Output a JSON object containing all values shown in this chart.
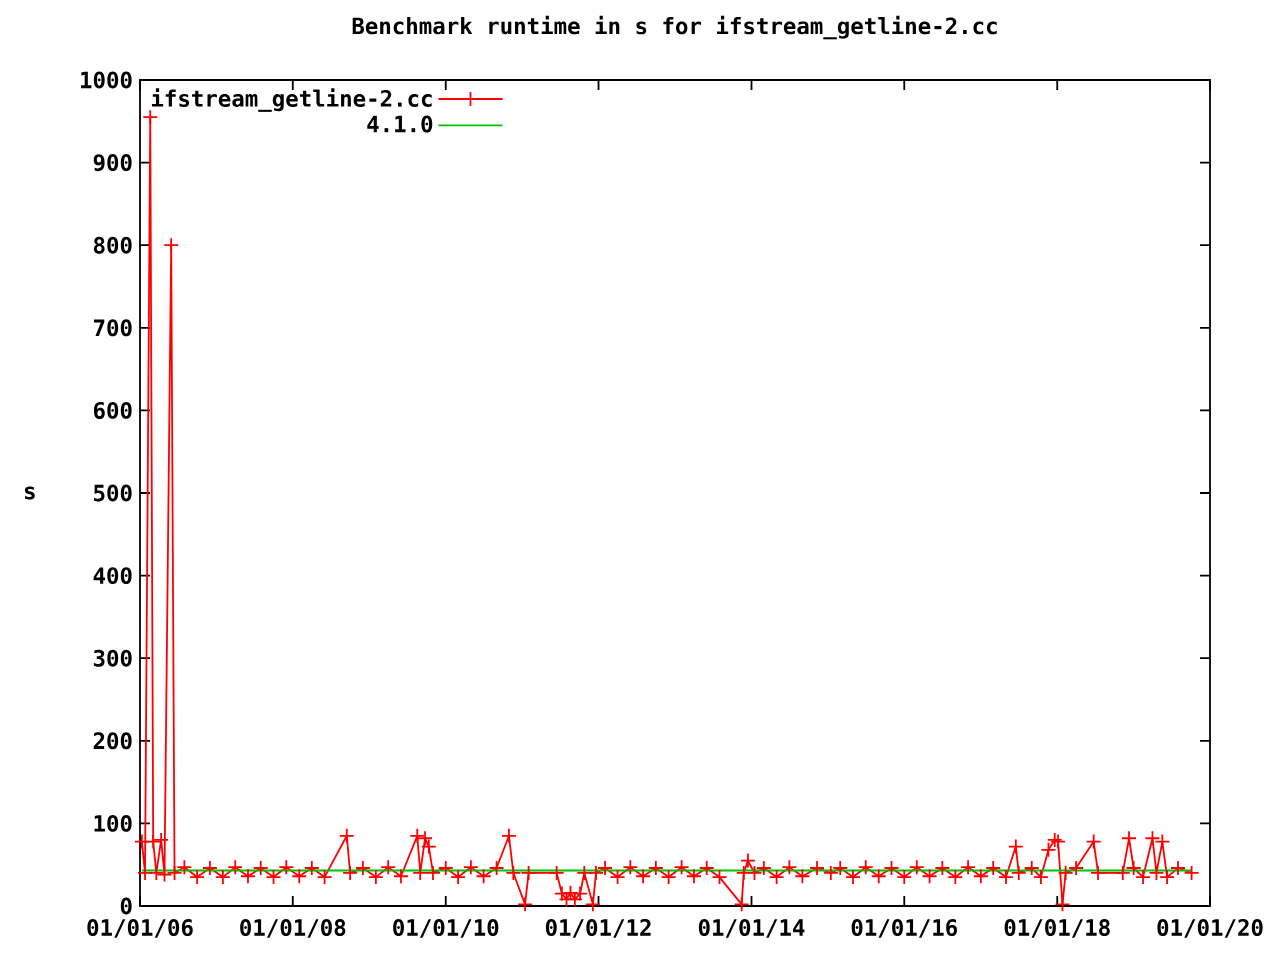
{
  "chart_data": {
    "type": "line",
    "title": "Benchmark runtime in s for ifstream_getline-2.cc",
    "ylabel": "s",
    "xlim": [
      "2006-01-01",
      "2020-01-01"
    ],
    "xticks": [
      {
        "value": "2006-01-01",
        "label": "01/01/06"
      },
      {
        "value": "2008-01-01",
        "label": "01/01/08"
      },
      {
        "value": "2010-01-01",
        "label": "01/01/10"
      },
      {
        "value": "2012-01-01",
        "label": "01/01/12"
      },
      {
        "value": "2014-01-01",
        "label": "01/01/14"
      },
      {
        "value": "2016-01-01",
        "label": "01/01/16"
      },
      {
        "value": "2018-01-01",
        "label": "01/01/18"
      },
      {
        "value": "2020-01-01",
        "label": "01/01/20"
      }
    ],
    "ylim": [
      0,
      1000
    ],
    "yticks": [
      0,
      100,
      200,
      300,
      400,
      500,
      600,
      700,
      800,
      900,
      1000
    ],
    "legend": "top left",
    "series": [
      {
        "name": "ifstream_getline-2.cc",
        "color": "#ff0000",
        "marker": "cross",
        "x": [
          "2006-01-10",
          "2006-01-25",
          "2006-02-19",
          "2006-03-05",
          "2006-03-20",
          "2006-04-12",
          "2006-04-28",
          "2006-05-30",
          "2006-06-15",
          "2006-08-01",
          "2006-10-01",
          "2006-12-01",
          "2007-02-01",
          "2007-04-01",
          "2007-06-01",
          "2007-08-01",
          "2007-10-01",
          "2007-12-01",
          "2008-02-01",
          "2008-04-01",
          "2008-06-01",
          "2008-09-15",
          "2008-10-01",
          "2008-12-01",
          "2009-02-01",
          "2009-04-01",
          "2009-06-01",
          "2009-08-18",
          "2009-09-01",
          "2009-09-24",
          "2009-10-12",
          "2009-11-01",
          "2010-01-01",
          "2010-03-01",
          "2010-05-01",
          "2010-07-01",
          "2010-09-01",
          "2010-10-30",
          "2010-11-20",
          "2011-01-15",
          "2011-02-01",
          "2011-06-15",
          "2011-07-10",
          "2011-08-01",
          "2011-08-20",
          "2011-09-10",
          "2011-10-05",
          "2011-10-25",
          "2011-12-05",
          "2011-12-20",
          "2012-02-01",
          "2012-04-01",
          "2012-06-01",
          "2012-08-01",
          "2012-10-01",
          "2012-12-01",
          "2013-02-01",
          "2013-04-01",
          "2013-06-01",
          "2013-08-01",
          "2013-11-15",
          "2013-11-25",
          "2013-12-15",
          "2014-01-15",
          "2014-03-01",
          "2014-05-01",
          "2014-07-01",
          "2014-09-01",
          "2014-11-10",
          "2015-01-15",
          "2015-03-01",
          "2015-05-01",
          "2015-07-01",
          "2015-09-01",
          "2015-11-01",
          "2016-01-01",
          "2016-03-01",
          "2016-05-01",
          "2016-07-01",
          "2016-09-01",
          "2016-11-01",
          "2017-01-01",
          "2017-03-01",
          "2017-05-01",
          "2017-06-17",
          "2017-07-01",
          "2017-09-01",
          "2017-10-15",
          "2017-11-20",
          "2017-12-20",
          "2018-01-05",
          "2018-01-26",
          "2018-02-10",
          "2018-04-01",
          "2018-06-24",
          "2018-07-15",
          "2018-11-10",
          "2018-12-10",
          "2019-01-01",
          "2019-02-15",
          "2019-04-01",
          "2019-04-20",
          "2019-05-18",
          "2019-06-10",
          "2019-08-01",
          "2019-10-05"
        ],
        "values": [
          78,
          40,
          955,
          78,
          40,
          80,
          38,
          800,
          40,
          47,
          35,
          46,
          35,
          47,
          36,
          46,
          35,
          47,
          36,
          46,
          35,
          85,
          40,
          46,
          35,
          47,
          36,
          85,
          40,
          82,
          72,
          40,
          46,
          35,
          47,
          36,
          46,
          85,
          40,
          2,
          40,
          40,
          15,
          8,
          16,
          8,
          15,
          40,
          2,
          40,
          46,
          35,
          47,
          36,
          46,
          35,
          47,
          36,
          46,
          35,
          2,
          40,
          55,
          40,
          46,
          35,
          47,
          36,
          46,
          40,
          46,
          35,
          47,
          36,
          46,
          35,
          47,
          36,
          46,
          35,
          47,
          36,
          46,
          35,
          72,
          40,
          46,
          35,
          68,
          80,
          78,
          2,
          40,
          46,
          78,
          40,
          40,
          82,
          46,
          35,
          82,
          40,
          78,
          35,
          46,
          40
        ]
      },
      {
        "name": "4.1.0",
        "color": "#00c000",
        "marker": "none",
        "x": [
          "2006-01-10",
          "2019-10-05"
        ],
        "values": [
          43,
          43
        ]
      }
    ]
  }
}
